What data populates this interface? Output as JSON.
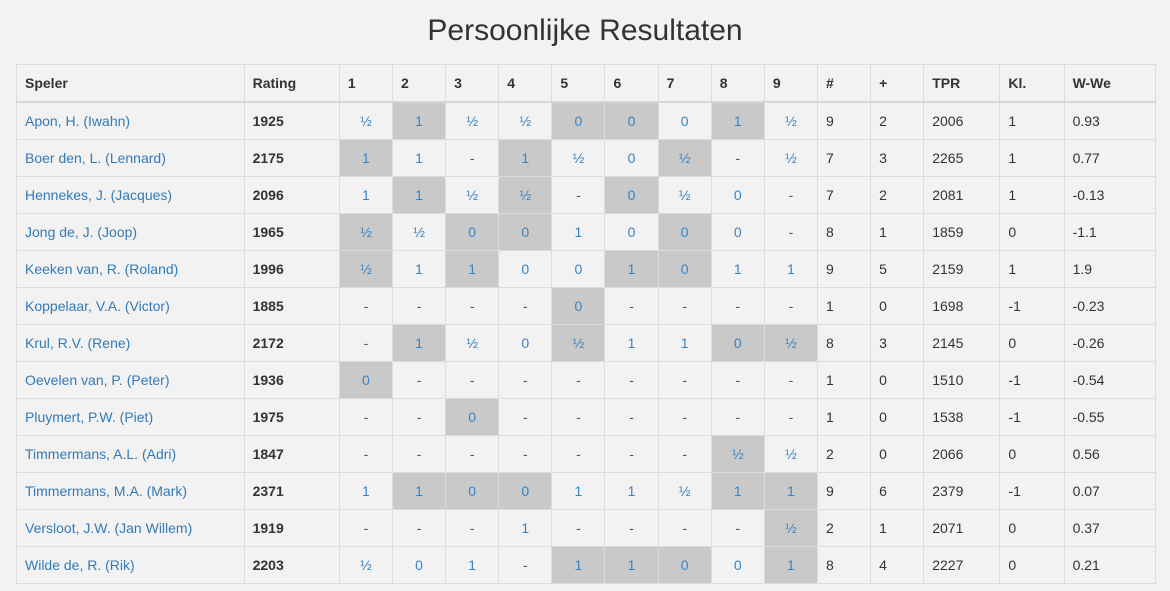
{
  "title": "Persoonlijke Resultaten",
  "columns": [
    "Speler",
    "Rating",
    "1",
    "2",
    "3",
    "4",
    "5",
    "6",
    "7",
    "8",
    "9",
    "#",
    "+",
    "TPR",
    "Kl.",
    "W-We"
  ],
  "rows": [
    {
      "name": "Apon, H. (Iwahn)",
      "rating": "1925",
      "results": [
        "½",
        "1",
        "½",
        "½",
        "0",
        "0",
        "0",
        "1",
        "½"
      ],
      "shaded": [
        false,
        true,
        false,
        false,
        true,
        true,
        false,
        true,
        false
      ],
      "games": "9",
      "plus": "2",
      "tpr": "2006",
      "kl": "1",
      "wwe": "0.93"
    },
    {
      "name": "Boer den, L. (Lennard)",
      "rating": "2175",
      "results": [
        "1",
        "1",
        "-",
        "1",
        "½",
        "0",
        "½",
        "-",
        "½"
      ],
      "shaded": [
        true,
        false,
        false,
        true,
        false,
        false,
        true,
        false,
        false
      ],
      "games": "7",
      "plus": "3",
      "tpr": "2265",
      "kl": "1",
      "wwe": "0.77"
    },
    {
      "name": "Hennekes, J. (Jacques)",
      "rating": "2096",
      "results": [
        "1",
        "1",
        "½",
        "½",
        "-",
        "0",
        "½",
        "0",
        "-"
      ],
      "shaded": [
        false,
        true,
        false,
        true,
        false,
        true,
        false,
        false,
        false
      ],
      "games": "7",
      "plus": "2",
      "tpr": "2081",
      "kl": "1",
      "wwe": "-0.13"
    },
    {
      "name": "Jong de, J. (Joop)",
      "rating": "1965",
      "results": [
        "½",
        "½",
        "0",
        "0",
        "1",
        "0",
        "0",
        "0",
        "-"
      ],
      "shaded": [
        true,
        false,
        true,
        true,
        false,
        false,
        true,
        false,
        false
      ],
      "games": "8",
      "plus": "1",
      "tpr": "1859",
      "kl": "0",
      "wwe": "-1.1"
    },
    {
      "name": "Keeken van, R. (Roland)",
      "rating": "1996",
      "results": [
        "½",
        "1",
        "1",
        "0",
        "0",
        "1",
        "0",
        "1",
        "1"
      ],
      "shaded": [
        true,
        false,
        true,
        false,
        false,
        true,
        true,
        false,
        false
      ],
      "games": "9",
      "plus": "5",
      "tpr": "2159",
      "kl": "1",
      "wwe": "1.9"
    },
    {
      "name": "Koppelaar, V.A. (Victor)",
      "rating": "1885",
      "results": [
        "-",
        "-",
        "-",
        "-",
        "0",
        "-",
        "-",
        "-",
        "-"
      ],
      "shaded": [
        false,
        false,
        false,
        false,
        true,
        false,
        false,
        false,
        false
      ],
      "games": "1",
      "plus": "0",
      "tpr": "1698",
      "kl": "-1",
      "wwe": "-0.23"
    },
    {
      "name": "Krul, R.V. (Rene)",
      "rating": "2172",
      "results": [
        "-",
        "1",
        "½",
        "0",
        "½",
        "1",
        "1",
        "0",
        "½"
      ],
      "shaded": [
        false,
        true,
        false,
        false,
        true,
        false,
        false,
        true,
        true
      ],
      "games": "8",
      "plus": "3",
      "tpr": "2145",
      "kl": "0",
      "wwe": "-0.26"
    },
    {
      "name": "Oevelen van, P. (Peter)",
      "rating": "1936",
      "results": [
        "0",
        "-",
        "-",
        "-",
        "-",
        "-",
        "-",
        "-",
        "-"
      ],
      "shaded": [
        true,
        false,
        false,
        false,
        false,
        false,
        false,
        false,
        false
      ],
      "games": "1",
      "plus": "0",
      "tpr": "1510",
      "kl": "-1",
      "wwe": "-0.54"
    },
    {
      "name": "Pluymert, P.W. (Piet)",
      "rating": "1975",
      "results": [
        "-",
        "-",
        "0",
        "-",
        "-",
        "-",
        "-",
        "-",
        "-"
      ],
      "shaded": [
        false,
        false,
        true,
        false,
        false,
        false,
        false,
        false,
        false
      ],
      "games": "1",
      "plus": "0",
      "tpr": "1538",
      "kl": "-1",
      "wwe": "-0.55"
    },
    {
      "name": "Timmermans, A.L. (Adri)",
      "rating": "1847",
      "results": [
        "-",
        "-",
        "-",
        "-",
        "-",
        "-",
        "-",
        "½",
        "½"
      ],
      "shaded": [
        false,
        false,
        false,
        false,
        false,
        false,
        false,
        true,
        false
      ],
      "games": "2",
      "plus": "0",
      "tpr": "2066",
      "kl": "0",
      "wwe": "0.56"
    },
    {
      "name": "Timmermans, M.A. (Mark)",
      "rating": "2371",
      "results": [
        "1",
        "1",
        "0",
        "0",
        "1",
        "1",
        "½",
        "1",
        "1"
      ],
      "shaded": [
        false,
        true,
        true,
        true,
        false,
        false,
        false,
        true,
        true
      ],
      "games": "9",
      "plus": "6",
      "tpr": "2379",
      "kl": "-1",
      "wwe": "0.07"
    },
    {
      "name": "Versloot, J.W. (Jan Willem)",
      "rating": "1919",
      "results": [
        "-",
        "-",
        "-",
        "1",
        "-",
        "-",
        "-",
        "-",
        "½"
      ],
      "shaded": [
        false,
        false,
        false,
        false,
        false,
        false,
        false,
        false,
        true
      ],
      "games": "2",
      "plus": "1",
      "tpr": "2071",
      "kl": "0",
      "wwe": "0.37"
    },
    {
      "name": "Wilde de, R. (Rik)",
      "rating": "2203",
      "results": [
        "½",
        "0",
        "1",
        "-",
        "1",
        "1",
        "0",
        "0",
        "1"
      ],
      "shaded": [
        false,
        false,
        false,
        false,
        true,
        true,
        true,
        false,
        true
      ],
      "games": "8",
      "plus": "4",
      "tpr": "2227",
      "kl": "0",
      "wwe": "0.21"
    }
  ]
}
